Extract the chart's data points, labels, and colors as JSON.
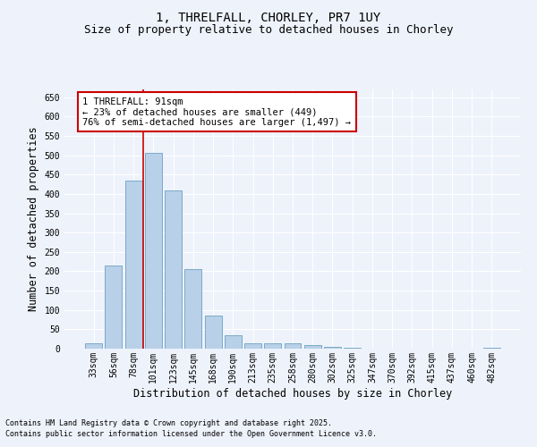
{
  "title": "1, THRELFALL, CHORLEY, PR7 1UY",
  "subtitle": "Size of property relative to detached houses in Chorley",
  "xlabel": "Distribution of detached houses by size in Chorley",
  "ylabel": "Number of detached properties",
  "footnote1": "Contains HM Land Registry data © Crown copyright and database right 2025.",
  "footnote2": "Contains public sector information licensed under the Open Government Licence v3.0.",
  "categories": [
    "33sqm",
    "56sqm",
    "78sqm",
    "101sqm",
    "123sqm",
    "145sqm",
    "168sqm",
    "190sqm",
    "213sqm",
    "235sqm",
    "258sqm",
    "280sqm",
    "302sqm",
    "325sqm",
    "347sqm",
    "370sqm",
    "392sqm",
    "415sqm",
    "437sqm",
    "460sqm",
    "482sqm"
  ],
  "values": [
    15,
    215,
    435,
    505,
    410,
    205,
    85,
    35,
    15,
    13,
    15,
    10,
    5,
    3,
    1,
    1,
    0,
    0,
    0,
    0,
    3
  ],
  "bar_color": "#b8d0e8",
  "bar_edge_color": "#7aaac8",
  "background_color": "#eef2fb",
  "grid_color": "#ffffff",
  "annotation_text": "1 THRELFALL: 91sqm\n← 23% of detached houses are smaller (449)\n76% of semi-detached houses are larger (1,497) →",
  "annotation_box_color": "#ffffff",
  "annotation_box_edge": "#cc0000",
  "vline_x": 2.5,
  "vline_color": "#cc0000",
  "ylim": [
    0,
    670
  ],
  "yticks": [
    0,
    50,
    100,
    150,
    200,
    250,
    300,
    350,
    400,
    450,
    500,
    550,
    600,
    650
  ],
  "title_fontsize": 10,
  "subtitle_fontsize": 9,
  "label_fontsize": 8.5,
  "tick_fontsize": 7,
  "annotation_fontsize": 7.5,
  "footnote_fontsize": 6
}
